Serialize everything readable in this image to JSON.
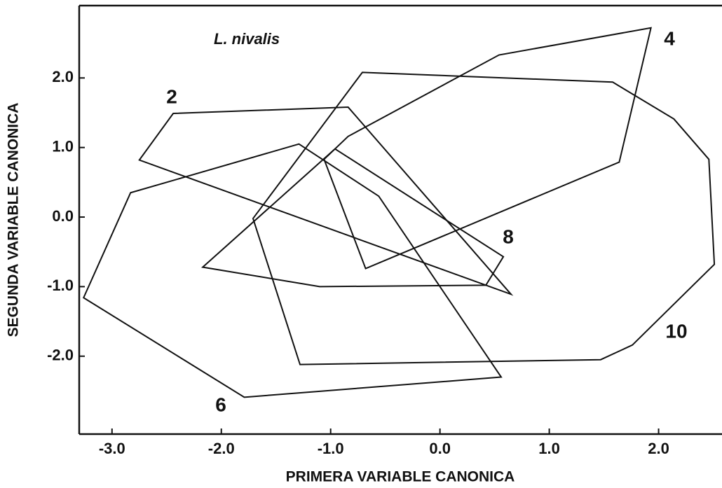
{
  "chart_data": {
    "type": "polygon",
    "xlabel": "PRIMERA VARIABLE CANONICA",
    "ylabel": "SEGUNDA VARIABLE CANONICA",
    "annotation": "L. nivalis",
    "xlim": [
      -3.3,
      2.58
    ],
    "ylim": [
      -3.12,
      3.04
    ],
    "xticks": [
      {
        "value": -3,
        "label": "-3.0"
      },
      {
        "value": -2,
        "label": "-2.0"
      },
      {
        "value": -1,
        "label": "-1.0"
      },
      {
        "value": 0,
        "label": "0.0"
      },
      {
        "value": 1,
        "label": "1.0"
      },
      {
        "value": 2,
        "label": "2.0"
      }
    ],
    "yticks": [
      {
        "value": 2,
        "label": "2.0"
      },
      {
        "value": 1,
        "label": "1.0"
      },
      {
        "value": 0,
        "label": "0.0"
      },
      {
        "value": -1,
        "label": "-1.0"
      },
      {
        "value": -2,
        "label": "-2.0"
      }
    ],
    "color": "#111111",
    "series": [
      {
        "name": "2",
        "x": [
          -2.44,
          -0.84,
          0.65,
          -2.75
        ],
        "y": [
          1.49,
          1.58,
          -1.11,
          0.82
        ]
      },
      {
        "name": "4",
        "x": [
          1.93,
          1.64,
          -0.68,
          -1.06,
          -0.84,
          0.54
        ],
        "y": [
          2.72,
          0.79,
          -0.74,
          0.83,
          1.16,
          2.33
        ]
      },
      {
        "name": "6",
        "x": [
          -1.29,
          -0.56,
          0.56,
          -1.79,
          -3.26,
          -2.83
        ],
        "y": [
          1.05,
          0.3,
          -2.3,
          -2.59,
          -1.16,
          0.35
        ]
      },
      {
        "name": "8",
        "x": [
          -0.96,
          0.58,
          0.42,
          -1.1,
          -2.17
        ],
        "y": [
          0.98,
          -0.57,
          -0.98,
          -1.0,
          -0.72
        ]
      },
      {
        "name": "10",
        "x": [
          -0.71,
          1.58,
          2.14,
          2.46,
          2.51,
          1.76,
          1.47,
          -1.28,
          -1.71
        ],
        "y": [
          2.08,
          1.94,
          1.41,
          0.83,
          -0.68,
          -1.84,
          -2.05,
          -2.12,
          -0.02
        ]
      }
    ]
  }
}
